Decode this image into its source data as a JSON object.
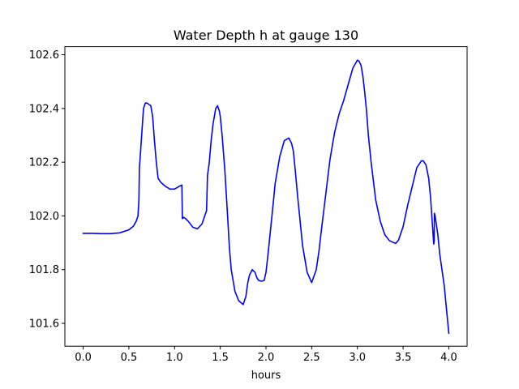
{
  "chart_data": {
    "type": "line",
    "title": "Water Depth h at gauge 130",
    "xlabel": "hours",
    "ylabel": "",
    "xlim": [
      -0.2,
      4.2
    ],
    "ylim": [
      101.515,
      102.63
    ],
    "xticks": [
      0.0,
      0.5,
      1.0,
      1.5,
      2.0,
      2.5,
      3.0,
      3.5,
      4.0
    ],
    "xtick_labels": [
      "0.0",
      "0.5",
      "1.0",
      "1.5",
      "2.0",
      "2.5",
      "3.0",
      "3.5",
      "4.0"
    ],
    "yticks": [
      101.6,
      101.8,
      102.0,
      102.2,
      102.4,
      102.6
    ],
    "ytick_labels": [
      "101.6",
      "101.8",
      "102.0",
      "102.2",
      "102.4",
      "102.6"
    ],
    "grid": false,
    "legend": "none",
    "series": [
      {
        "color": "#0000ff",
        "x": [
          0.0,
          0.1,
          0.2,
          0.3,
          0.4,
          0.5,
          0.55,
          0.58,
          0.6,
          0.61,
          0.615,
          0.62,
          0.64,
          0.66,
          0.68,
          0.7,
          0.72,
          0.74,
          0.76,
          0.78,
          0.8,
          0.82,
          0.85,
          0.9,
          0.95,
          1.0,
          1.05,
          1.08,
          1.085,
          1.1,
          1.12,
          1.15,
          1.2,
          1.25,
          1.3,
          1.33,
          1.35,
          1.36,
          1.38,
          1.4,
          1.42,
          1.45,
          1.47,
          1.49,
          1.5,
          1.52,
          1.55,
          1.58,
          1.6,
          1.62,
          1.64,
          1.66,
          1.7,
          1.75,
          1.78,
          1.8,
          1.82,
          1.85,
          1.88,
          1.9,
          1.92,
          1.95,
          1.98,
          2.0,
          2.02,
          2.05,
          2.08,
          2.1,
          2.15,
          2.2,
          2.25,
          2.28,
          2.3,
          2.32,
          2.35,
          2.4,
          2.45,
          2.5,
          2.55,
          2.58,
          2.6,
          2.65,
          2.7,
          2.75,
          2.8,
          2.85,
          2.9,
          2.95,
          3.0,
          3.02,
          3.04,
          3.06,
          3.08,
          3.1,
          3.12,
          3.15,
          3.2,
          3.25,
          3.3,
          3.35,
          3.4,
          3.42,
          3.45,
          3.5,
          3.55,
          3.6,
          3.65,
          3.7,
          3.72,
          3.75,
          3.78,
          3.8,
          3.82,
          3.83,
          3.835,
          3.84,
          3.842,
          3.85,
          3.88,
          3.9,
          3.95,
          4.0
        ],
        "y": [
          101.935,
          101.935,
          101.934,
          101.934,
          101.937,
          101.948,
          101.962,
          101.98,
          102.0,
          102.06,
          102.18,
          102.2,
          102.3,
          102.4,
          102.42,
          102.42,
          102.415,
          102.41,
          102.37,
          102.28,
          102.2,
          102.14,
          102.125,
          102.11,
          102.1,
          102.1,
          102.11,
          102.115,
          101.99,
          101.995,
          101.99,
          101.98,
          101.958,
          101.952,
          101.97,
          102.0,
          102.02,
          102.15,
          102.2,
          102.28,
          102.34,
          102.4,
          102.41,
          102.39,
          102.37,
          102.3,
          102.17,
          102.0,
          101.88,
          101.8,
          101.76,
          101.72,
          101.685,
          101.67,
          101.7,
          101.75,
          101.78,
          101.8,
          101.79,
          101.77,
          101.76,
          101.757,
          101.76,
          101.79,
          101.85,
          101.95,
          102.05,
          102.12,
          102.22,
          102.28,
          102.29,
          102.27,
          102.24,
          102.17,
          102.06,
          101.89,
          101.79,
          101.752,
          101.8,
          101.87,
          101.93,
          102.07,
          102.21,
          102.31,
          102.38,
          102.43,
          102.49,
          102.55,
          102.58,
          102.575,
          102.56,
          102.52,
          102.46,
          102.39,
          102.3,
          102.2,
          102.06,
          101.98,
          101.93,
          101.908,
          101.9,
          101.898,
          101.91,
          101.96,
          102.04,
          102.11,
          102.18,
          102.205,
          102.205,
          102.19,
          102.14,
          102.07,
          101.97,
          101.92,
          101.895,
          101.905,
          102.01,
          102.0,
          101.93,
          101.86,
          101.74,
          101.563
        ]
      }
    ]
  }
}
